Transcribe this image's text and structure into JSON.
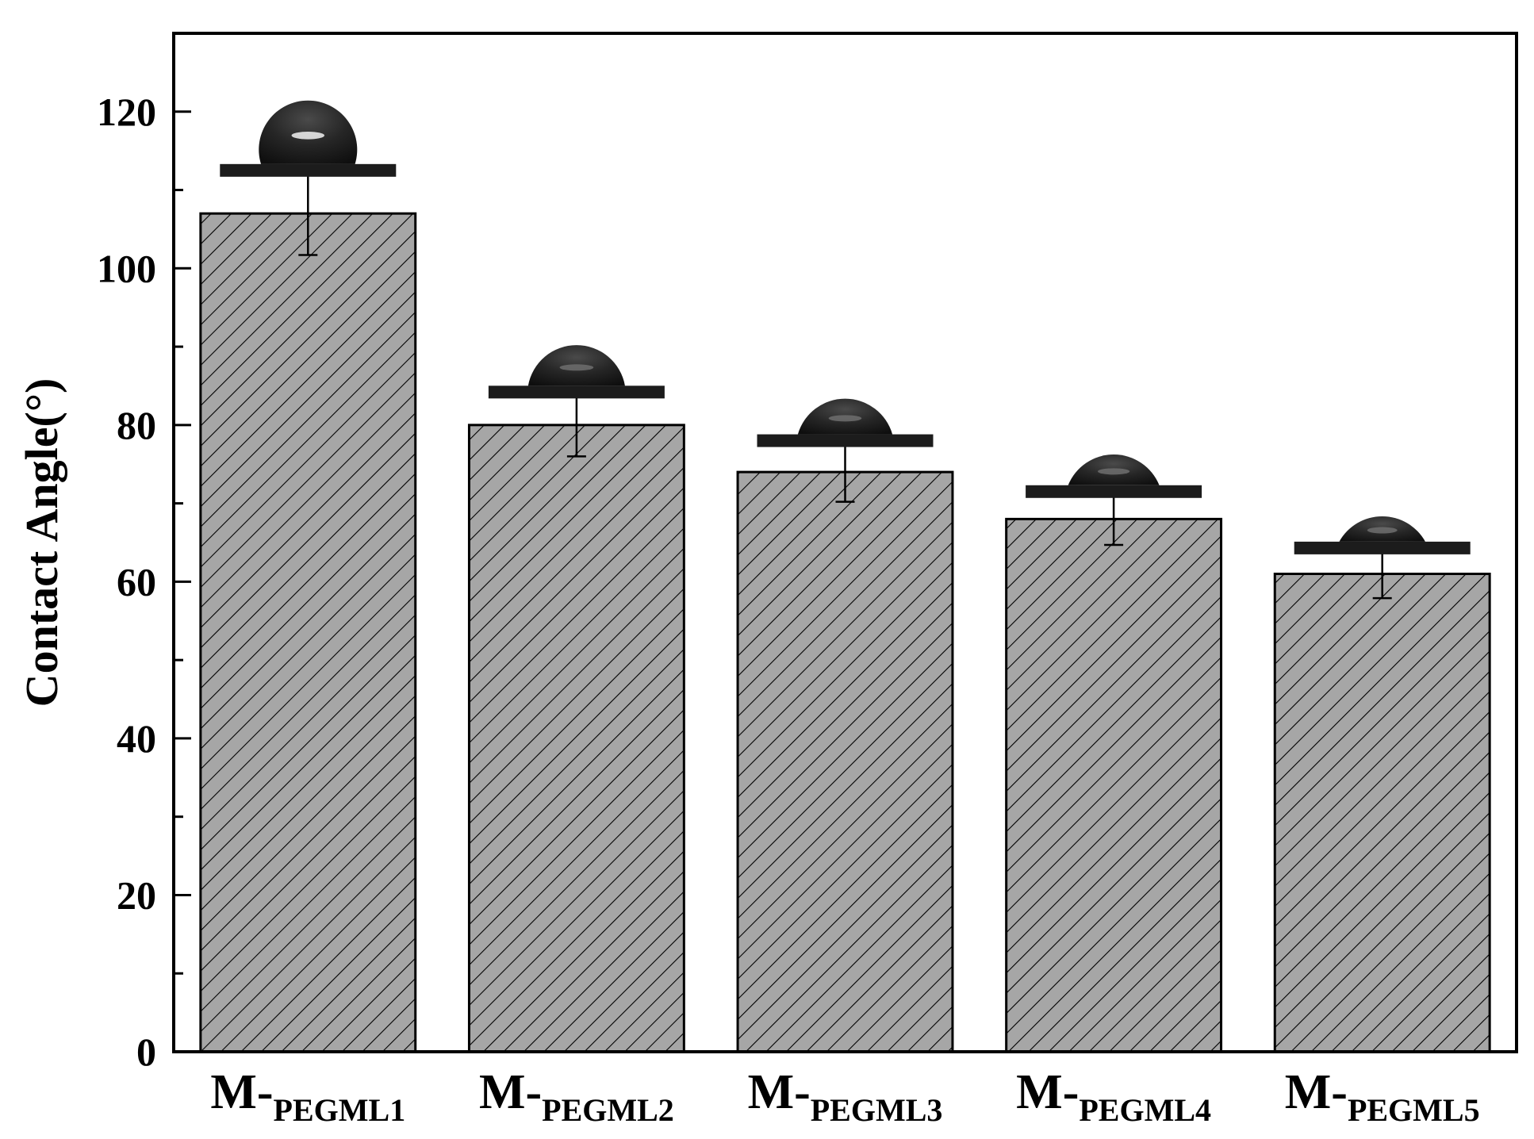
{
  "chart_data": {
    "type": "bar",
    "title": "",
    "xlabel": "",
    "ylabel": "Contact Angle(°)",
    "ylim": [
      0,
      130
    ],
    "yticks": [
      0,
      20,
      40,
      60,
      80,
      100,
      120
    ],
    "grid": false,
    "legend": "none",
    "categories": [
      {
        "prefix": "M-",
        "subscript": "PEGML1"
      },
      {
        "prefix": "M-",
        "subscript": "PEGML2"
      },
      {
        "prefix": "M-",
        "subscript": "PEGML3"
      },
      {
        "prefix": "M-",
        "subscript": "PEGML4"
      },
      {
        "prefix": "M-",
        "subscript": "PEGML5"
      }
    ],
    "values": [
      107,
      80,
      74,
      68,
      61
    ],
    "errors": [
      5.3,
      4.0,
      3.8,
      3.3,
      3.1
    ],
    "bar_fill": "#a6a6a6",
    "hatch_color": "#000000",
    "droplet_inset_color": "#1c1c1c"
  }
}
